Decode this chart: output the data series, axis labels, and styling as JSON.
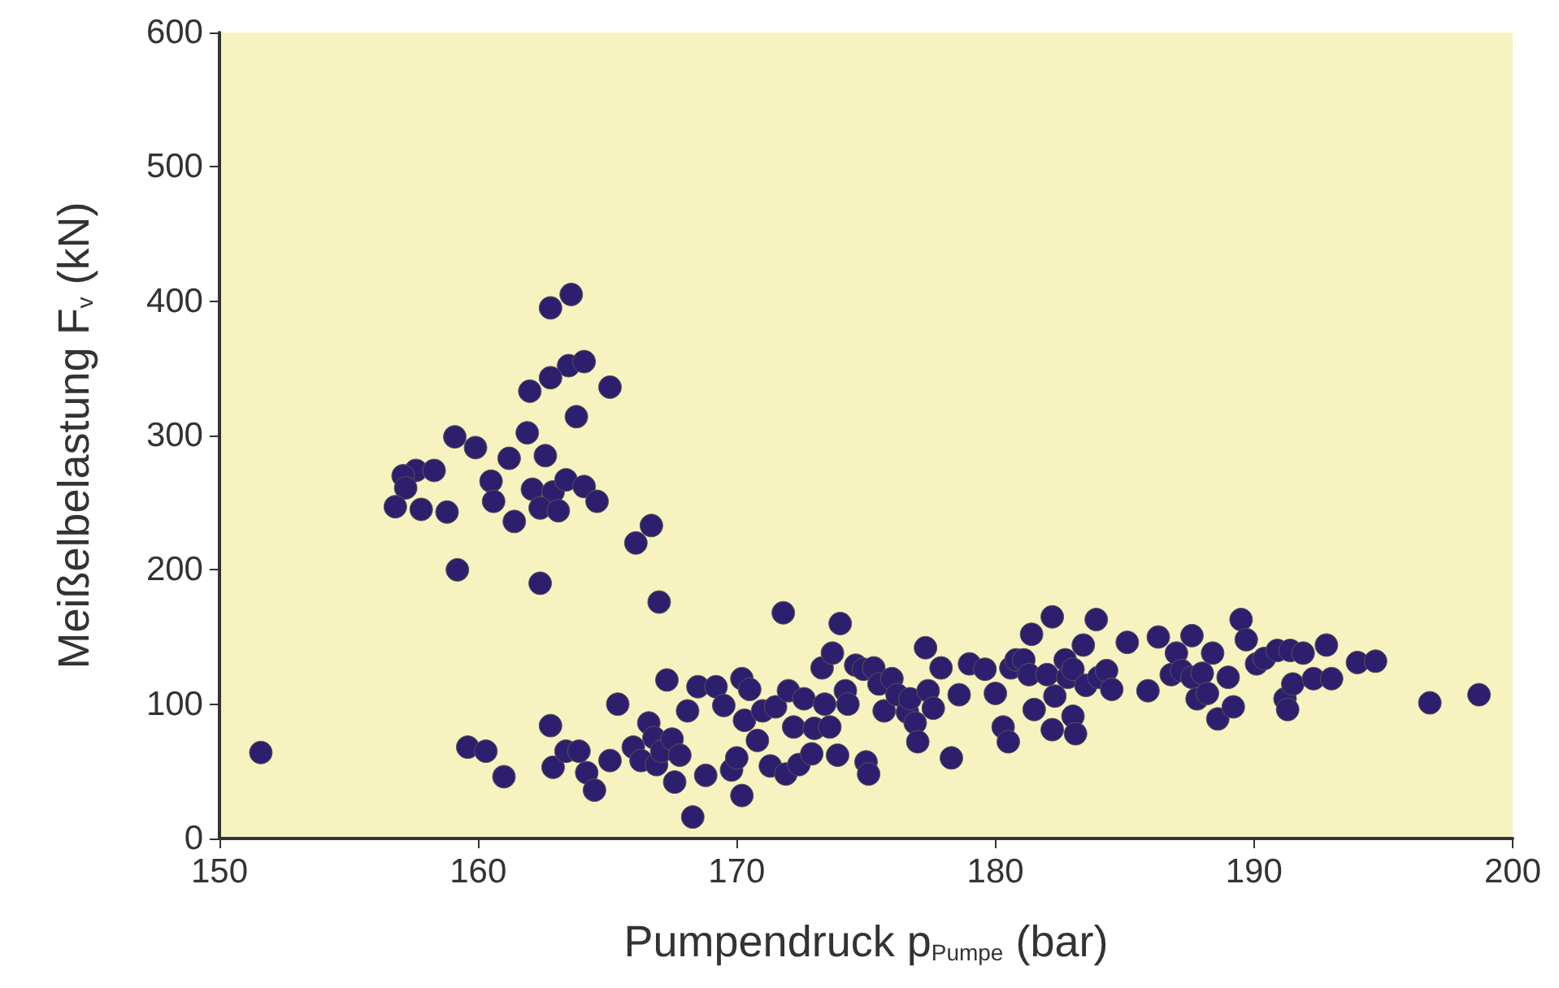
{
  "chart_data": {
    "type": "scatter",
    "xlabel": "Pumpendruck p$_{Pumpe}$ (bar)",
    "ylabel": "Meißelbelastung F$_{v}$ (kN)",
    "xlim": [
      150,
      200
    ],
    "xticks": [
      150,
      160,
      170,
      180,
      190,
      200
    ],
    "ylim": [
      0,
      600
    ],
    "yticks": [
      0,
      100,
      200,
      300,
      400,
      500,
      600
    ],
    "grid": false,
    "marker": "circle",
    "series": [
      {
        "color": "#2e1f6e",
        "x": [
          163.6,
          162.8,
          163.5,
          164.1,
          165.1,
          162.8,
          162.0,
          163.8,
          161.9,
          159.1,
          159.9,
          161.2,
          162.6,
          157.6,
          158.3,
          157.1,
          157.2,
          160.5,
          162.1,
          162.9,
          163.4,
          164.1,
          160.6,
          164.6,
          156.8,
          157.8,
          158.8,
          162.4,
          163.1,
          161.4,
          166.7,
          166.1,
          159.2,
          162.4,
          167.0,
          151.6,
          159.6,
          160.3,
          161.0,
          162.8,
          162.9,
          163.4,
          163.9,
          164.2,
          164.5,
          165.1,
          165.4,
          166.0,
          166.3,
          166.6,
          166.8,
          166.9,
          167.1,
          167.3,
          167.6,
          167.5,
          167.8,
          168.1,
          168.3,
          168.5,
          168.8,
          169.2,
          169.5,
          169.8,
          170.0,
          170.2,
          170.3,
          170.2,
          170.5,
          170.8,
          171.0,
          171.3,
          171.5,
          171.8,
          171.9,
          172.0,
          172.2,
          172.4,
          172.6,
          172.9,
          173.0,
          173.3,
          173.4,
          173.6,
          173.7,
          173.9,
          174.0,
          174.2,
          174.3,
          174.6,
          174.9,
          175.0,
          175.1,
          175.3,
          175.5,
          175.7,
          176.0,
          176.2,
          176.6,
          176.7,
          176.9,
          177.0,
          177.3,
          177.4,
          177.6,
          177.9,
          178.3,
          178.6,
          179.0,
          179.6,
          180.0,
          180.3,
          180.5,
          180.6,
          180.8,
          181.1,
          181.3,
          181.4,
          181.5,
          182.0,
          182.2,
          182.2,
          182.3,
          182.7,
          182.8,
          183.0,
          183.0,
          183.1,
          183.4,
          183.5,
          183.9,
          184.0,
          184.3,
          184.5,
          185.1,
          185.9,
          186.3,
          186.8,
          187.0,
          187.2,
          187.6,
          187.6,
          187.8,
          188.0,
          188.2,
          188.4,
          188.6,
          189.0,
          189.2,
          189.5,
          189.7,
          190.1,
          190.4,
          190.9,
          191.2,
          191.3,
          191.4,
          191.5,
          191.9,
          192.3,
          192.8,
          193.0,
          194.0,
          194.7,
          196.8,
          198.7
        ],
        "values": [
          405,
          395,
          352,
          355,
          336,
          343,
          333,
          314,
          302,
          299,
          291,
          283,
          285,
          274,
          274,
          270,
          261,
          266,
          260,
          258,
          267,
          262,
          251,
          251,
          247,
          245,
          243,
          246,
          244,
          236,
          233,
          220,
          200,
          190,
          176,
          64,
          68,
          65,
          46,
          84,
          53,
          65,
          65,
          49,
          36,
          58,
          100,
          68,
          58,
          86,
          75,
          55,
          65,
          118,
          42,
          74,
          62,
          95,
          16,
          113,
          47,
          113,
          99,
          51,
          60,
          32,
          88,
          119,
          111,
          73,
          95,
          54,
          98,
          168,
          48,
          110,
          83,
          55,
          104,
          63,
          82,
          127,
          100,
          83,
          138,
          62,
          160,
          110,
          100,
          129,
          126,
          57,
          48,
          127,
          115,
          95,
          119,
          107,
          94,
          104,
          86,
          72,
          142,
          110,
          97,
          127,
          60,
          107,
          130,
          126,
          108,
          83,
          72,
          127,
          133,
          133,
          122,
          152,
          96,
          122,
          165,
          81,
          106,
          133,
          120,
          91,
          126,
          78,
          144,
          114,
          163,
          120,
          125,
          111,
          146,
          110,
          150,
          122,
          138,
          125,
          151,
          120,
          104,
          123,
          108,
          138,
          89,
          120,
          98,
          163,
          148,
          130,
          134,
          140,
          104,
          96,
          140,
          115,
          138,
          119,
          144,
          119,
          131,
          132,
          101,
          107
        ]
      }
    ]
  }
}
